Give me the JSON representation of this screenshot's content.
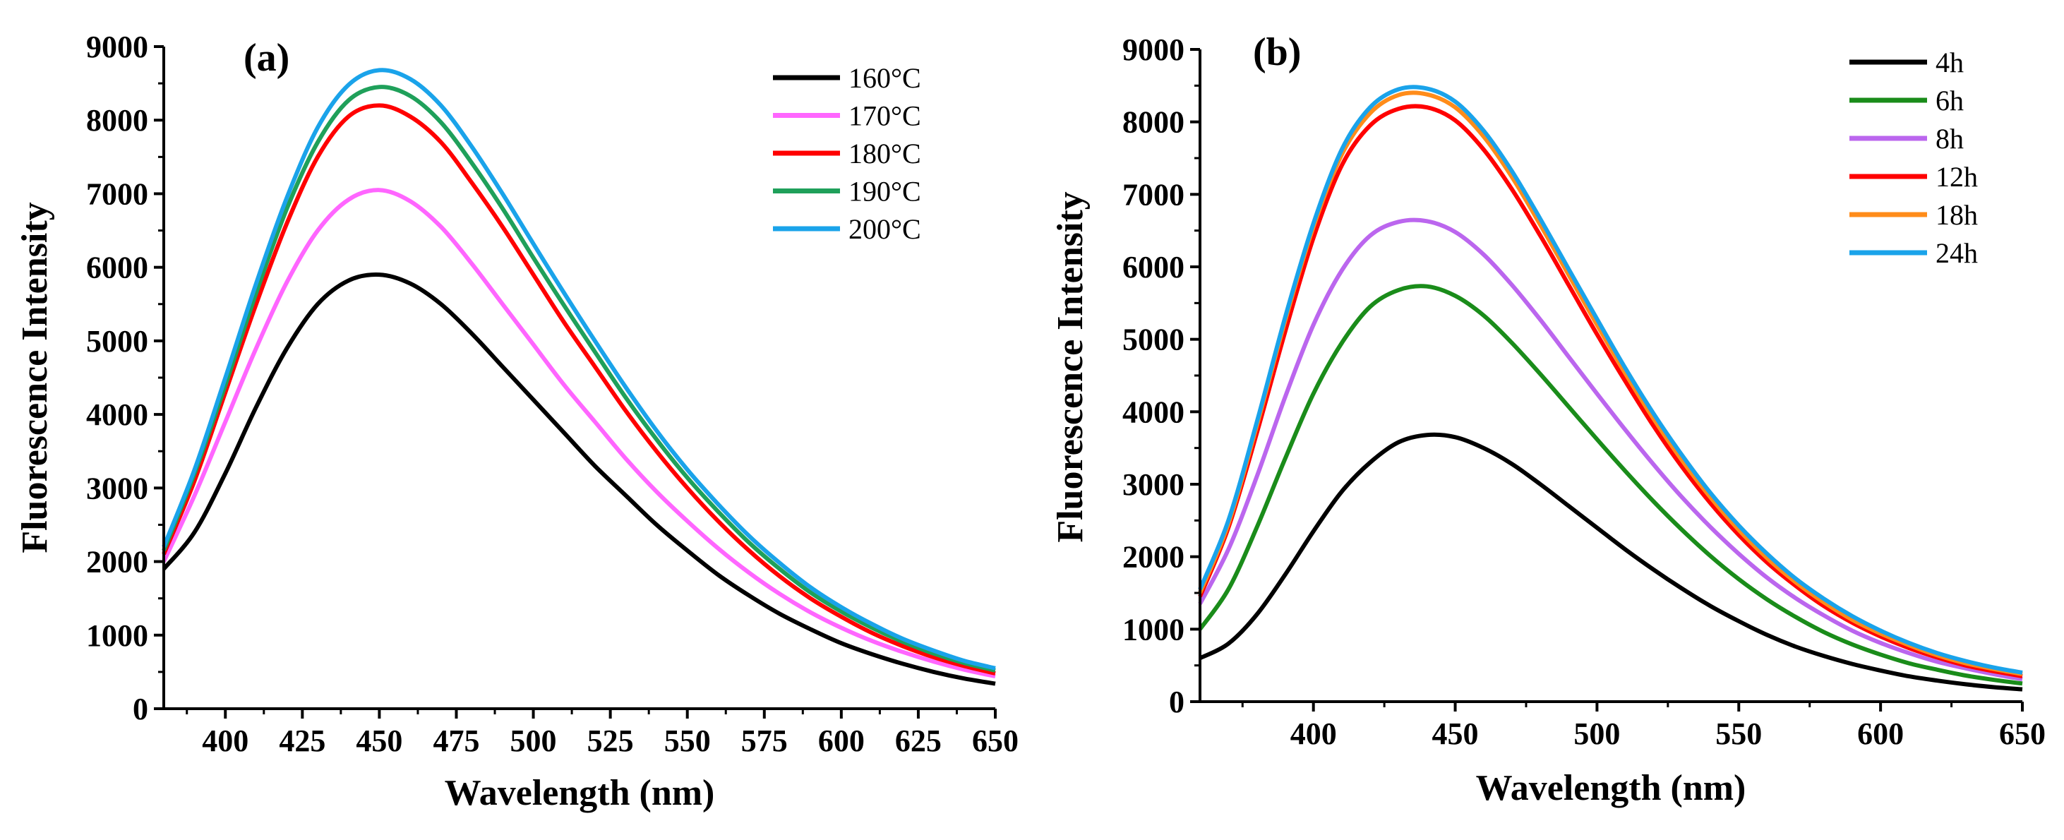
{
  "chart_data": [
    {
      "type": "line",
      "panel_label": "(a)",
      "xlabel": "Wavelength (nm)",
      "ylabel": "Fluorescence Intensity",
      "xlim": [
        380,
        650
      ],
      "ylim": [
        0,
        9000
      ],
      "xticks": [
        400,
        425,
        450,
        475,
        500,
        525,
        550,
        575,
        600,
        625,
        650
      ],
      "yticks": [
        0,
        1000,
        2000,
        3000,
        4000,
        5000,
        6000,
        7000,
        8000,
        9000
      ],
      "legend_position": "top-right",
      "x": [
        380,
        390,
        400,
        410,
        420,
        430,
        440,
        450,
        460,
        470,
        480,
        490,
        500,
        510,
        520,
        530,
        540,
        550,
        560,
        570,
        580,
        590,
        600,
        610,
        620,
        630,
        640,
        650
      ],
      "series": [
        {
          "name": "160°C",
          "color": "#000000",
          "values": [
            1900,
            2400,
            3200,
            4100,
            4900,
            5500,
            5820,
            5900,
            5780,
            5500,
            5100,
            4650,
            4200,
            3750,
            3300,
            2900,
            2500,
            2150,
            1820,
            1540,
            1290,
            1080,
            890,
            740,
            610,
            500,
            410,
            340
          ]
        },
        {
          "name": "170°C",
          "color": "#ff66ff",
          "values": [
            2000,
            2900,
            3900,
            4900,
            5800,
            6500,
            6920,
            7050,
            6900,
            6550,
            6050,
            5500,
            4950,
            4400,
            3900,
            3400,
            2950,
            2550,
            2180,
            1850,
            1560,
            1310,
            1100,
            920,
            770,
            640,
            530,
            440
          ]
        },
        {
          "name": "180°C",
          "color": "#ff0000",
          "values": [
            2100,
            3100,
            4300,
            5500,
            6600,
            7500,
            8050,
            8200,
            8050,
            7700,
            7150,
            6550,
            5900,
            5250,
            4650,
            4050,
            3500,
            3000,
            2550,
            2150,
            1800,
            1500,
            1250,
            1030,
            850,
            700,
            580,
            480
          ]
        },
        {
          "name": "190°C",
          "color": "#1fa05a",
          "values": [
            2150,
            3200,
            4400,
            5650,
            6800,
            7700,
            8270,
            8450,
            8330,
            7970,
            7420,
            6800,
            6130,
            5480,
            4850,
            4230,
            3660,
            3140,
            2680,
            2260,
            1900,
            1580,
            1320,
            1100,
            910,
            750,
            620,
            520
          ]
        },
        {
          "name": "200°C",
          "color": "#1aa3ea",
          "values": [
            2200,
            3250,
            4500,
            5780,
            6950,
            7900,
            8480,
            8680,
            8560,
            8200,
            7640,
            7000,
            6320,
            5650,
            5000,
            4370,
            3780,
            3250,
            2780,
            2350,
            1980,
            1650,
            1380,
            1150,
            950,
            790,
            650,
            550
          ]
        }
      ]
    },
    {
      "type": "line",
      "panel_label": "(b)",
      "xlabel": "Wavelength (nm)",
      "ylabel": "Fluorescence Intensity",
      "xlim": [
        360,
        650
      ],
      "ylim": [
        0,
        9000
      ],
      "xticks": [
        400,
        450,
        500,
        550,
        600,
        650
      ],
      "yticks": [
        0,
        1000,
        2000,
        3000,
        4000,
        5000,
        6000,
        7000,
        8000,
        9000
      ],
      "legend_position": "top-right",
      "x": [
        360,
        370,
        380,
        390,
        400,
        410,
        420,
        430,
        440,
        450,
        460,
        470,
        480,
        490,
        500,
        510,
        520,
        530,
        540,
        550,
        560,
        570,
        580,
        590,
        600,
        610,
        620,
        630,
        640,
        650
      ],
      "series": [
        {
          "name": "4h",
          "color": "#000000",
          "values": [
            600,
            800,
            1200,
            1750,
            2350,
            2900,
            3300,
            3580,
            3680,
            3650,
            3500,
            3280,
            3000,
            2700,
            2400,
            2100,
            1820,
            1560,
            1320,
            1110,
            920,
            760,
            630,
            520,
            430,
            350,
            290,
            240,
            200,
            170
          ]
        },
        {
          "name": "6h",
          "color": "#1a8c1a",
          "values": [
            1000,
            1550,
            2400,
            3350,
            4250,
            4950,
            5450,
            5680,
            5730,
            5600,
            5330,
            4950,
            4520,
            4070,
            3620,
            3180,
            2760,
            2370,
            2010,
            1690,
            1410,
            1170,
            960,
            790,
            650,
            530,
            440,
            360,
            300,
            250
          ]
        },
        {
          "name": "8h",
          "color": "#bb66ee",
          "values": [
            1350,
            2100,
            3100,
            4200,
            5200,
            5950,
            6430,
            6620,
            6630,
            6480,
            6170,
            5750,
            5270,
            4760,
            4250,
            3750,
            3270,
            2820,
            2410,
            2040,
            1710,
            1430,
            1190,
            980,
            810,
            670,
            550,
            460,
            380,
            310
          ]
        },
        {
          "name": "12h",
          "color": "#ff0000",
          "values": [
            1450,
            2400,
            3700,
            5100,
            6400,
            7400,
            7950,
            8180,
            8200,
            8020,
            7620,
            7070,
            6430,
            5750,
            5070,
            4420,
            3800,
            3240,
            2740,
            2300,
            1920,
            1600,
            1320,
            1090,
            900,
            740,
            610,
            500,
            420,
            350
          ]
        },
        {
          "name": "18h",
          "color": "#ff8c1a",
          "values": [
            1500,
            2450,
            3800,
            5250,
            6550,
            7550,
            8120,
            8370,
            8380,
            8200,
            7800,
            7240,
            6580,
            5890,
            5200,
            4530,
            3900,
            3330,
            2820,
            2370,
            1980,
            1650,
            1370,
            1130,
            940,
            780,
            640,
            530,
            450,
            380
          ]
        },
        {
          "name": "24h",
          "color": "#1aa3ea",
          "values": [
            1550,
            2500,
            3850,
            5300,
            6600,
            7620,
            8200,
            8450,
            8460,
            8280,
            7880,
            7320,
            6660,
            5970,
            5280,
            4600,
            3970,
            3400,
            2880,
            2430,
            2040,
            1700,
            1420,
            1180,
            980,
            810,
            670,
            560,
            470,
            400
          ]
        }
      ]
    }
  ]
}
